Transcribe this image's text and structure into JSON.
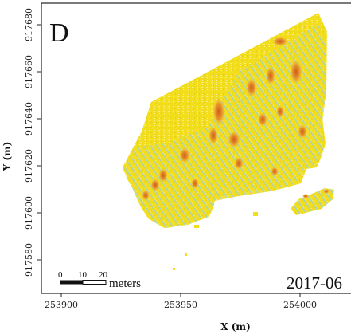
{
  "panel": {
    "letter": "D",
    "date_label": "2017-06"
  },
  "axes": {
    "xlabel": "X (m)",
    "ylabel": "Y (m)",
    "x_ticks": [
      253900,
      253950,
      254000
    ],
    "y_ticks": [
      917580,
      917600,
      917620,
      917640,
      917660,
      917680
    ],
    "x_tick_labels": [
      "253900",
      "253950",
      "254000"
    ],
    "y_tick_labels": [
      "917580",
      "917600",
      "917620",
      "917640",
      "917660",
      "917680"
    ]
  },
  "scale_bar": {
    "labels": [
      "0",
      "10",
      "20"
    ],
    "unit": "meters"
  },
  "colors": {
    "background": "#ffffff",
    "base": "#f2de1c",
    "light": "#f6ec6a",
    "orange": "#e8962c",
    "red": "#c8561a",
    "blue": "#8fc8d8",
    "frame": "#222222"
  }
}
